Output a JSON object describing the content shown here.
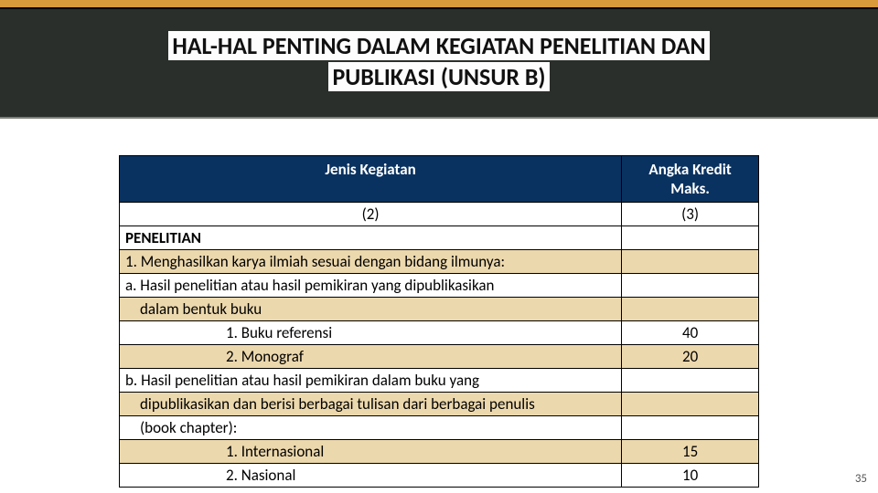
{
  "header": {
    "title_line1": "HAL-HAL PENTING DALAM KEGIATAN PENELITIAN DAN",
    "title_line2": "PUBLIKASI (UNSUR B)"
  },
  "table": {
    "headers": {
      "col1": "Jenis Kegiatan",
      "col2": "Angka Kredit Maks."
    },
    "subheaders": {
      "col1": "(2)",
      "col2": "(3)"
    },
    "rows": [
      {
        "col1": "PENELITIAN",
        "col2": "",
        "bold": true,
        "band": false
      },
      {
        "col1": "1. Menghasilkan karya ilmiah sesuai dengan bidang ilmunya:",
        "col2": "",
        "band": true
      },
      {
        "col1": "a. Hasil penelitian atau hasil pemikiran yang dipublikasikan",
        "col2": "",
        "band": false
      },
      {
        "col1": "dalam bentuk buku",
        "col2": "",
        "band": true,
        "indent": 1
      },
      {
        "col1": "1.  Buku referensi",
        "col2": "40",
        "band": false,
        "indent": 2
      },
      {
        "col1": "2.  Monograf",
        "col2": "20",
        "band": true,
        "indent": 2
      },
      {
        "col1": "b. Hasil penelitian atau hasil pemikiran dalam buku yang",
        "col2": "",
        "band": false
      },
      {
        "col1": "dipublikasikan dan berisi berbagai tulisan dari berbagai penulis",
        "col2": "",
        "band": true,
        "indent": 1
      },
      {
        "col1": "(book chapter):",
        "col2": "",
        "band": false,
        "indent": 1
      },
      {
        "col1": "1.  Internasional",
        "col2": "15",
        "band": true,
        "indent": 2
      },
      {
        "col1": "2.  Nasional",
        "col2": "10",
        "band": false,
        "indent": 2
      }
    ],
    "colors": {
      "header_bg": "#0a3260",
      "header_text": "#ffffff",
      "band_bg": "#ecd8ad",
      "border": "#000000"
    },
    "col_widths": {
      "col1": 550,
      "col2": 150
    },
    "fontsize": 17
  },
  "page_number": "35"
}
